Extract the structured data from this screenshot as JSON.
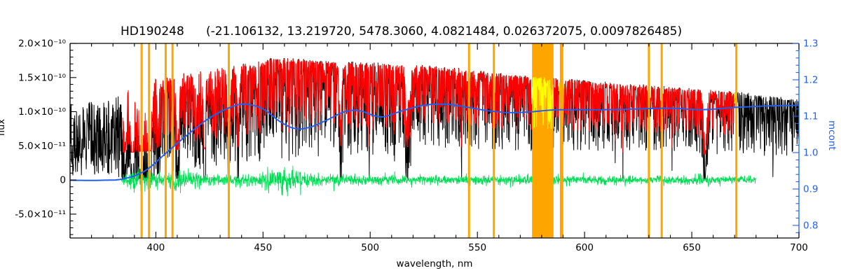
{
  "title": "HD190248    (-21.106132, 13.219720, 5478.3060, 4.0821484, 0.026372075, 0.0097826485)",
  "chart_data": {
    "type": "line",
    "title_star": "HD190248",
    "title_params": "(-21.106132, 13.219720, 5478.3060, 4.0821484, 0.026372075, 0.0097826485)",
    "xlabel": "wavelength, nm",
    "xlim": [
      360,
      700
    ],
    "grid": false,
    "axes": {
      "x": {
        "ticks": [
          {
            "v": 400,
            "label": "400"
          },
          {
            "v": 450,
            "label": "450"
          },
          {
            "v": 500,
            "label": "500"
          },
          {
            "v": 550,
            "label": "550"
          },
          {
            "v": 600,
            "label": "600"
          },
          {
            "v": 650,
            "label": "650"
          },
          {
            "v": 700,
            "label": "700"
          }
        ],
        "minor_step": 10
      },
      "left": {
        "label": "flux",
        "range_e10": [
          -0.85,
          2.0
        ],
        "ticks": [
          {
            "v": 2.0,
            "label": "2.0×10⁻¹⁰"
          },
          {
            "v": 1.5,
            "label": "1.5×10⁻¹⁰"
          },
          {
            "v": 1.0,
            "label": "1.0×10⁻¹⁰"
          },
          {
            "v": 0.5,
            "label": "5.0×10⁻¹¹"
          },
          {
            "v": 0.0,
            "label": "0"
          },
          {
            "v": -0.5,
            "label": "-5.0×10⁻¹¹"
          }
        ]
      },
      "right": {
        "label": "mcont",
        "color": "#2060f0",
        "range": [
          0.7654,
          1.3
        ],
        "ticks": [
          {
            "v": 1.3,
            "label": "1.3"
          },
          {
            "v": 1.2,
            "label": "1.2"
          },
          {
            "v": 1.1,
            "label": "1.1"
          },
          {
            "v": 1.0,
            "label": "1.0"
          },
          {
            "v": 0.9,
            "label": "0.9"
          },
          {
            "v": 0.8,
            "label": "0.8"
          }
        ]
      }
    },
    "series": [
      {
        "name": "observed spectrum",
        "color": "#000000",
        "range_nm": [
          360,
          700
        ],
        "envelope_x_nm": [
          360,
          370,
          380,
          385,
          395,
          405,
          415,
          425,
          435,
          445,
          455,
          465,
          475,
          485,
          495,
          510,
          525,
          540,
          555,
          570,
          585,
          600,
          615,
          630,
          645,
          660,
          675,
          690,
          700
        ],
        "envelope_top_e10": [
          1.15,
          1.16,
          1.18,
          1.38,
          1.45,
          1.5,
          1.55,
          1.6,
          1.64,
          1.7,
          1.77,
          1.75,
          1.73,
          1.72,
          1.7,
          1.68,
          1.66,
          1.62,
          1.56,
          1.52,
          1.48,
          1.44,
          1.4,
          1.37,
          1.33,
          1.3,
          1.26,
          1.2,
          1.16
        ]
      },
      {
        "name": "fitted spectrum",
        "color": "#ff0000",
        "range_nm": [
          384.5,
          670.5
        ],
        "relative_line_depth": 0.72
      },
      {
        "name": "residual obs-fit",
        "color": "#00dd55",
        "range_nm": [
          384,
          680
        ],
        "center_e10": 0,
        "amp_x_nm": [
          384,
          388,
          400,
          412,
          420,
          426,
          432,
          448,
          452,
          460,
          470,
          474,
          478,
          500,
          550,
          600,
          650,
          654,
          657,
          660,
          680
        ],
        "amp_e10": [
          0.06,
          0.11,
          0.11,
          0.13,
          0.1,
          0.075,
          0.07,
          0.075,
          0.13,
          0.16,
          0.13,
          0.085,
          0.07,
          0.065,
          0.06,
          0.055,
          0.055,
          0.08,
          0.08,
          0.05,
          0.045
        ]
      },
      {
        "name": "continuum mcont",
        "color": "#2060f0",
        "axis": "right",
        "x_nm": [
          360,
          375,
          385,
          395,
          405,
          415,
          425,
          435,
          442,
          450,
          458,
          465,
          472,
          480,
          488,
          495,
          505,
          515,
          525,
          535,
          545,
          555,
          565,
          575,
          585,
          595,
          610,
          625,
          640,
          655,
          670,
          685,
          700
        ],
        "mcont": [
          0.924,
          0.924,
          0.928,
          0.95,
          1.0,
          1.05,
          1.095,
          1.125,
          1.133,
          1.12,
          1.085,
          1.066,
          1.07,
          1.09,
          1.112,
          1.115,
          1.098,
          1.115,
          1.13,
          1.133,
          1.125,
          1.115,
          1.11,
          1.112,
          1.117,
          1.118,
          1.118,
          1.12,
          1.122,
          1.118,
          1.124,
          1.128,
          1.13
        ]
      }
    ],
    "strong_absorption_lines": [
      {
        "nm": 385.0,
        "depth": 0.5,
        "width_nm": 1.0
      },
      {
        "nm": 388.9,
        "depth": 0.85,
        "width_nm": 1.1
      },
      {
        "nm": 393.37,
        "depth": 0.95,
        "width_nm": 1.4
      },
      {
        "nm": 396.85,
        "depth": 0.95,
        "width_nm": 1.3
      },
      {
        "nm": 410.17,
        "depth": 0.8,
        "width_nm": 0.9
      },
      {
        "nm": 422.67,
        "depth": 0.65,
        "width_nm": 0.7
      },
      {
        "nm": 434.05,
        "depth": 0.75,
        "width_nm": 0.9
      },
      {
        "nm": 438.35,
        "depth": 0.55,
        "width_nm": 0.8
      },
      {
        "nm": 486.13,
        "depth": 0.6,
        "width_nm": 0.8
      },
      {
        "nm": 516.73,
        "depth": 0.4,
        "width_nm": 0.6
      },
      {
        "nm": 517.27,
        "depth": 0.4,
        "width_nm": 0.6
      },
      {
        "nm": 518.36,
        "depth": 0.4,
        "width_nm": 0.6
      },
      {
        "nm": 588.99,
        "depth": 0.5,
        "width_nm": 0.5
      },
      {
        "nm": 589.59,
        "depth": 0.45,
        "width_nm": 0.5
      },
      {
        "nm": 656.28,
        "depth": 0.8,
        "width_nm": 1.0
      }
    ],
    "masked_lines_nm": [
      393.37,
      396.85,
      404.6,
      407.8,
      434.05,
      546.1,
      557.7,
      588.99,
      589.59,
      630.0,
      636.0,
      670.8
    ],
    "masked_band_nm": [
      575.5,
      585.5
    ],
    "masked_color": "#ffa500",
    "highlight_color": "#ffff00",
    "highlight_ranges_nm": [
      [
        575.5,
        585.5
      ],
      [
        587.8,
        590.4
      ],
      [
        669.8,
        671.8
      ]
    ]
  }
}
